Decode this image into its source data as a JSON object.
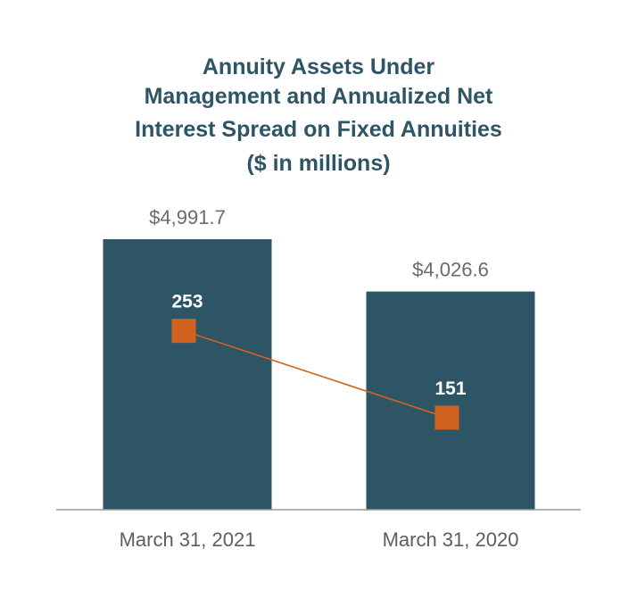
{
  "chart_data": {
    "type": "bar",
    "title_lines": [
      "Annuity Assets Under",
      "Management and Annualized Net",
      "Interest Spread on Fixed Annuities",
      "($ in millions)"
    ],
    "categories": [
      "March 31, 2021",
      "March 31, 2020"
    ],
    "series": [
      {
        "type": "bar",
        "values": [
          4991.7,
          4026.6
        ],
        "value_labels": [
          "$4,991.7",
          "$4,026.6"
        ],
        "color": "#2e5566"
      },
      {
        "type": "line",
        "values": [
          253,
          151
        ],
        "value_labels": [
          "253",
          "151"
        ],
        "color": "#d0621e",
        "marker": "square"
      }
    ],
    "ylim_bars": [
      0,
      5500
    ],
    "ylim_line": [
      0,
      450
    ],
    "grid": false,
    "legend": "none"
  }
}
